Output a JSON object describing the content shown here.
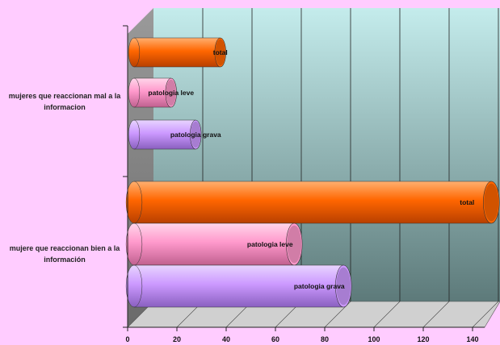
{
  "chart_data": {
    "type": "bar",
    "orientation": "horizontal",
    "categories": [
      "mujeres que reaccionan mal a la informacion",
      "mujere que reaccionan bien a la información"
    ],
    "series": [
      {
        "name": "total",
        "values": [
          35,
          145
        ]
      },
      {
        "name": "patologia leve",
        "values": [
          15,
          65
        ]
      },
      {
        "name": "patologia grava",
        "values": [
          25,
          85
        ]
      }
    ],
    "xlim": [
      0,
      140
    ],
    "xticks": [
      "0",
      "20",
      "40",
      "60",
      "80",
      "100",
      "120",
      "140"
    ],
    "grid": true,
    "legend": "none",
    "colors": {
      "total": "#ff6600",
      "patologia leve": "#ff99cc",
      "patologia grava": "#cc99ff",
      "background": "#ffccff",
      "wall": "#b8e8e8"
    }
  }
}
